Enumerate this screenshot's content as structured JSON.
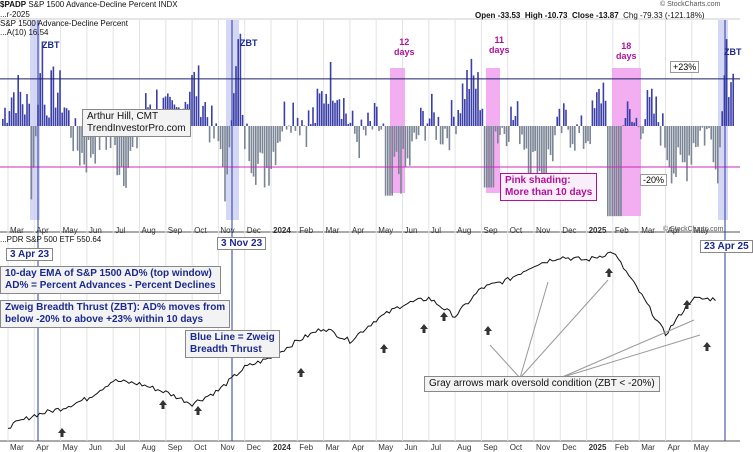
{
  "header": {
    "symbol": "$PADP",
    "name": "S&P 1500 Advance-Decline Percent",
    "exchange": "INDX",
    "date": "...r-2025",
    "open": "Open -33.53",
    "high": "High -10.73",
    "close": "Close -13.87",
    "change": "Chg -79.33 (-121.18%)",
    "copyright": "© StockCharts.com",
    "top_legend": "S&P 1500 Advance-Decline Percent",
    "ema_legend": "...A(10) 16.54",
    "bottom_legend": "...PDR S&P 500 ETF 550.64"
  },
  "annotations": {
    "author": "Arthur Hill, CMT\nTrendInvestorPro.com",
    "pink_note": "Pink shading:\nMore than 10 days",
    "ema_note": "10-day EMA of S&P 1500 AD%  (top window)\nAD% = Percent Advances - Percent Declines",
    "zbt_note": "Zweig Breadth Thrust (ZBT): AD% moves from\nbelow -20% to above +23% within 10 days",
    "blue_line_note": "Blue Line = Zweig\nBreadth Thrust",
    "gray_arrow_note": "Gray arrows mark oversold condition (ZBT < -20%)",
    "level_up": "+23%",
    "level_down": "-20%",
    "zbt_label": "ZBT",
    "days_labels": [
      "12\ndays",
      "11\ndays",
      "18\ndays"
    ],
    "signal_dates": [
      "3 Apr 23",
      "3 Nov 23",
      "23 Apr 25"
    ]
  },
  "chart_data": [
    {
      "type": "bar",
      "title": "S&P 1500 Advance-Decline Percent (10-day EMA)",
      "ylabel": "",
      "reference_lines": {
        "upper": 23,
        "lower": -20
      },
      "x_axis_labels": [
        "Mar",
        "Apr",
        "May",
        "Jun",
        "Jul",
        "Aug",
        "Sep",
        "Oct",
        "Nov",
        "Dec",
        "2024",
        "Feb",
        "Mar",
        "Apr",
        "May",
        "Jun",
        "Jul",
        "Aug",
        "Sep",
        "Oct",
        "Nov",
        "Dec",
        "2025",
        "Feb",
        "Mar",
        "Apr",
        "May"
      ],
      "zbt_signals": [
        "Apr 23",
        "Nov 23",
        "Apr 25"
      ],
      "pink_shaded_periods_days": [
        12,
        11,
        18
      ],
      "bar_colors": {
        "positive": "#3b3fa8",
        "negative": "#7a8696"
      }
    },
    {
      "type": "line",
      "title": "SPDR S&P 500 ETF",
      "last_value": 550.64,
      "x_axis_labels": [
        "Mar",
        "Apr",
        "May",
        "Jun",
        "Jul",
        "Aug",
        "Sep",
        "Oct",
        "Nov",
        "Dec",
        "2024",
        "Feb",
        "Mar",
        "Apr",
        "May",
        "Jun",
        "Jul",
        "Aug",
        "Sep",
        "Oct",
        "Nov",
        "Dec",
        "2025",
        "Feb",
        "Mar",
        "Apr",
        "May"
      ],
      "price_points": [
        [
          "Mar 23",
          396
        ],
        [
          "Apr 23",
          410
        ],
        [
          "May 23",
          418
        ],
        [
          "Jun 23",
          430
        ],
        [
          "Jul 23",
          452
        ],
        [
          "Aug 23",
          448
        ],
        [
          "Sep 23",
          438
        ],
        [
          "Oct 23",
          424
        ],
        [
          "Nov 23",
          440
        ],
        [
          "Dec 23",
          468
        ],
        [
          "Jan 24",
          480
        ],
        [
          "Feb 24",
          500
        ],
        [
          "Mar 24",
          516
        ],
        [
          "Apr 24",
          500
        ],
        [
          "May 24",
          526
        ],
        [
          "Jun 24",
          544
        ],
        [
          "Jul 24",
          552
        ],
        [
          "Aug 24",
          530
        ],
        [
          "Sep 24",
          564
        ],
        [
          "Oct 24",
          574
        ],
        [
          "Nov 24",
          592
        ],
        [
          "Dec 24",
          602
        ],
        [
          "Jan 25",
          598
        ],
        [
          "Feb 25",
          608
        ],
        [
          "Mar 25",
          560
        ],
        [
          "Apr 25",
          508
        ],
        [
          "May 25",
          551
        ]
      ]
    }
  ],
  "colors": {
    "bar_pos": "#3b3fa8",
    "bar_neg": "#7a8696",
    "pink": "#f0a0ee",
    "pink_line": "#cc2bb5",
    "blue_shade": "#c9cdf2",
    "blue_line": "#2b3a9c",
    "level_line": "#1b1f6e",
    "grid": "#e3e3e3",
    "price": "#111111"
  }
}
